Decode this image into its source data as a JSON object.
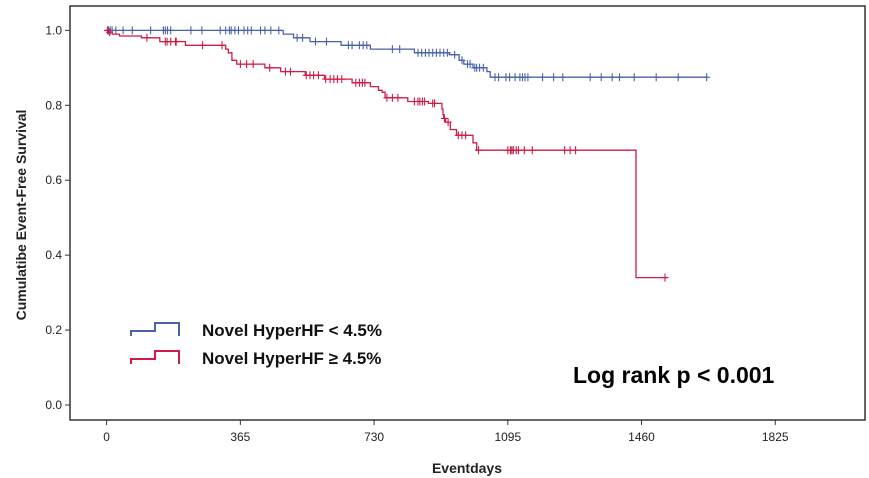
{
  "chart_data": {
    "type": "line",
    "step": true,
    "xlabel": "Eventdays",
    "ylabel": "Cumulatibe Event-Free Survival",
    "xlim": [
      -100,
      2070
    ],
    "ylim": [
      -0.04,
      1.065
    ],
    "x_ticks": [
      0,
      365,
      730,
      1095,
      1460,
      1825
    ],
    "y_ticks": [
      0.0,
      0.2,
      0.4,
      0.6,
      0.8,
      1.0
    ],
    "y_tick_labels": [
      "0.0",
      "0.2",
      "0.4",
      "0.6",
      "0.8",
      "1.0"
    ],
    "grid": false,
    "legend_position": "bottom-left",
    "annotation": "Log rank p < 0.001",
    "series": [
      {
        "name": "Novel HyperHF < 4.5%",
        "color": "#4a63a8",
        "steps": [
          [
            0,
            1.0
          ],
          [
            482,
            0.99
          ],
          [
            510,
            0.98
          ],
          [
            555,
            0.97
          ],
          [
            640,
            0.96
          ],
          [
            720,
            0.95
          ],
          [
            840,
            0.94
          ],
          [
            935,
            0.935
          ],
          [
            962,
            0.92
          ],
          [
            975,
            0.91
          ],
          [
            1000,
            0.9
          ],
          [
            1038,
            0.89
          ],
          [
            1047,
            0.875
          ],
          [
            1640,
            0.875
          ]
        ],
        "censored": [
          [
            2,
            1.0
          ],
          [
            5,
            1.0
          ],
          [
            10,
            1.0
          ],
          [
            15,
            1.0
          ],
          [
            25,
            1.0
          ],
          [
            45,
            1.0
          ],
          [
            70,
            1.0
          ],
          [
            120,
            1.0
          ],
          [
            155,
            1.0
          ],
          [
            160,
            1.0
          ],
          [
            166,
            1.0
          ],
          [
            175,
            1.0
          ],
          [
            230,
            1.0
          ],
          [
            260,
            1.0
          ],
          [
            310,
            1.0
          ],
          [
            325,
            1.0
          ],
          [
            335,
            1.0
          ],
          [
            340,
            1.0
          ],
          [
            350,
            1.0
          ],
          [
            360,
            1.0
          ],
          [
            375,
            1.0
          ],
          [
            385,
            1.0
          ],
          [
            395,
            1.0
          ],
          [
            420,
            1.0
          ],
          [
            432,
            1.0
          ],
          [
            448,
            1.0
          ],
          [
            470,
            1.0
          ],
          [
            520,
            0.98
          ],
          [
            535,
            0.98
          ],
          [
            570,
            0.97
          ],
          [
            600,
            0.97
          ],
          [
            660,
            0.96
          ],
          [
            670,
            0.96
          ],
          [
            690,
            0.96
          ],
          [
            700,
            0.96
          ],
          [
            710,
            0.96
          ],
          [
            780,
            0.95
          ],
          [
            800,
            0.95
          ],
          [
            850,
            0.94
          ],
          [
            860,
            0.94
          ],
          [
            870,
            0.94
          ],
          [
            880,
            0.94
          ],
          [
            890,
            0.94
          ],
          [
            900,
            0.94
          ],
          [
            910,
            0.94
          ],
          [
            920,
            0.94
          ],
          [
            930,
            0.94
          ],
          [
            950,
            0.935
          ],
          [
            970,
            0.92
          ],
          [
            985,
            0.91
          ],
          [
            992,
            0.91
          ],
          [
            1005,
            0.9
          ],
          [
            1010,
            0.9
          ],
          [
            1018,
            0.9
          ],
          [
            1028,
            0.9
          ],
          [
            1060,
            0.875
          ],
          [
            1070,
            0.875
          ],
          [
            1090,
            0.875
          ],
          [
            1100,
            0.875
          ],
          [
            1115,
            0.875
          ],
          [
            1128,
            0.875
          ],
          [
            1135,
            0.875
          ],
          [
            1142,
            0.875
          ],
          [
            1150,
            0.875
          ],
          [
            1190,
            0.875
          ],
          [
            1220,
            0.875
          ],
          [
            1245,
            0.875
          ],
          [
            1320,
            0.875
          ],
          [
            1350,
            0.875
          ],
          [
            1380,
            0.875
          ],
          [
            1400,
            0.875
          ],
          [
            1440,
            0.875
          ],
          [
            1500,
            0.875
          ],
          [
            1560,
            0.875
          ],
          [
            1638,
            0.875
          ]
        ]
      },
      {
        "name": "Novel HyperHF ≥ 4.5%",
        "color": "#cf1b45",
        "steps": [
          [
            0,
            1.0
          ],
          [
            5,
            0.995
          ],
          [
            15,
            0.99
          ],
          [
            35,
            0.985
          ],
          [
            95,
            0.98
          ],
          [
            145,
            0.97
          ],
          [
            215,
            0.96
          ],
          [
            325,
            0.95
          ],
          [
            332,
            0.94
          ],
          [
            342,
            0.92
          ],
          [
            355,
            0.91
          ],
          [
            432,
            0.9
          ],
          [
            475,
            0.89
          ],
          [
            542,
            0.88
          ],
          [
            595,
            0.87
          ],
          [
            670,
            0.86
          ],
          [
            720,
            0.85
          ],
          [
            742,
            0.84
          ],
          [
            752,
            0.835
          ],
          [
            760,
            0.82
          ],
          [
            822,
            0.81
          ],
          [
            878,
            0.805
          ],
          [
            915,
            0.79
          ],
          [
            918,
            0.775
          ],
          [
            920,
            0.765
          ],
          [
            925,
            0.755
          ],
          [
            938,
            0.735
          ],
          [
            955,
            0.72
          ],
          [
            1000,
            0.7
          ],
          [
            1010,
            0.68
          ],
          [
            1443,
            0.68
          ],
          [
            1445,
            0.34
          ],
          [
            1530,
            0.34
          ]
        ],
        "censored": [
          [
            3,
            1.0
          ],
          [
            8,
            0.995
          ],
          [
            110,
            0.98
          ],
          [
            160,
            0.97
          ],
          [
            165,
            0.97
          ],
          [
            175,
            0.97
          ],
          [
            188,
            0.97
          ],
          [
            190,
            0.97
          ],
          [
            262,
            0.96
          ],
          [
            315,
            0.96
          ],
          [
            365,
            0.91
          ],
          [
            382,
            0.91
          ],
          [
            400,
            0.91
          ],
          [
            445,
            0.9
          ],
          [
            488,
            0.89
          ],
          [
            502,
            0.89
          ],
          [
            545,
            0.88
          ],
          [
            555,
            0.88
          ],
          [
            565,
            0.88
          ],
          [
            578,
            0.88
          ],
          [
            598,
            0.87
          ],
          [
            610,
            0.87
          ],
          [
            620,
            0.87
          ],
          [
            630,
            0.87
          ],
          [
            642,
            0.87
          ],
          [
            680,
            0.86
          ],
          [
            690,
            0.86
          ],
          [
            698,
            0.86
          ],
          [
            705,
            0.86
          ],
          [
            765,
            0.82
          ],
          [
            780,
            0.82
          ],
          [
            795,
            0.82
          ],
          [
            840,
            0.81
          ],
          [
            850,
            0.81
          ],
          [
            855,
            0.81
          ],
          [
            862,
            0.81
          ],
          [
            868,
            0.81
          ],
          [
            890,
            0.805
          ],
          [
            895,
            0.805
          ],
          [
            922,
            0.765
          ],
          [
            932,
            0.755
          ],
          [
            960,
            0.72
          ],
          [
            970,
            0.72
          ],
          [
            980,
            0.72
          ],
          [
            1015,
            0.68
          ],
          [
            1095,
            0.68
          ],
          [
            1102,
            0.68
          ],
          [
            1106,
            0.68
          ],
          [
            1110,
            0.68
          ],
          [
            1118,
            0.68
          ],
          [
            1124,
            0.68
          ],
          [
            1140,
            0.68
          ],
          [
            1162,
            0.68
          ],
          [
            1250,
            0.68
          ],
          [
            1265,
            0.68
          ],
          [
            1280,
            0.68
          ],
          [
            1524,
            0.34
          ]
        ]
      }
    ]
  }
}
